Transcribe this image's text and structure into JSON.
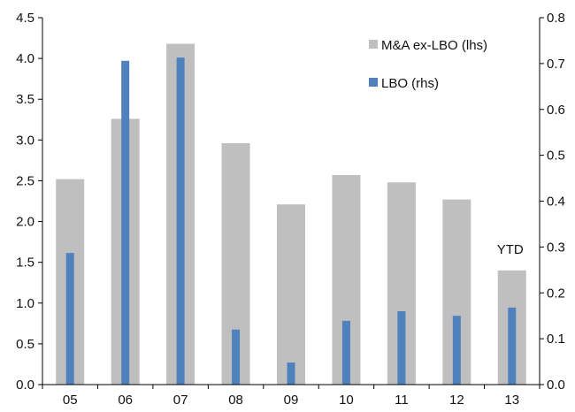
{
  "chart_data": {
    "type": "bar",
    "title": "",
    "categories": [
      "05",
      "06",
      "07",
      "08",
      "09",
      "10",
      "11",
      "12",
      "13"
    ],
    "series": [
      {
        "name": "M&A ex-LBO (lhs)",
        "axis": "left",
        "color": "#bfbfbf",
        "values": [
          2.52,
          3.26,
          4.18,
          2.96,
          2.21,
          2.57,
          2.48,
          2.27,
          1.4
        ]
      },
      {
        "name": "LBO (rhs)",
        "axis": "right",
        "color": "#4f81bd",
        "values": [
          0.287,
          0.706,
          0.713,
          0.12,
          0.048,
          0.139,
          0.16,
          0.15,
          0.168
        ]
      }
    ],
    "y_left": {
      "lim": [
        0,
        4.5
      ],
      "ticks": [
        "0.0",
        "0.5",
        "1.0",
        "1.5",
        "2.0",
        "2.5",
        "3.0",
        "3.5",
        "4.0",
        "4.5"
      ]
    },
    "y_right": {
      "lim": [
        0,
        0.8
      ],
      "ticks": [
        "0.0",
        "0.1",
        "0.2",
        "0.3",
        "0.4",
        "0.5",
        "0.6",
        "0.7",
        "0.8"
      ]
    },
    "annotations": [
      {
        "text": "YTD",
        "category": "13"
      }
    ],
    "grid": false,
    "legend_position": "top-right"
  }
}
